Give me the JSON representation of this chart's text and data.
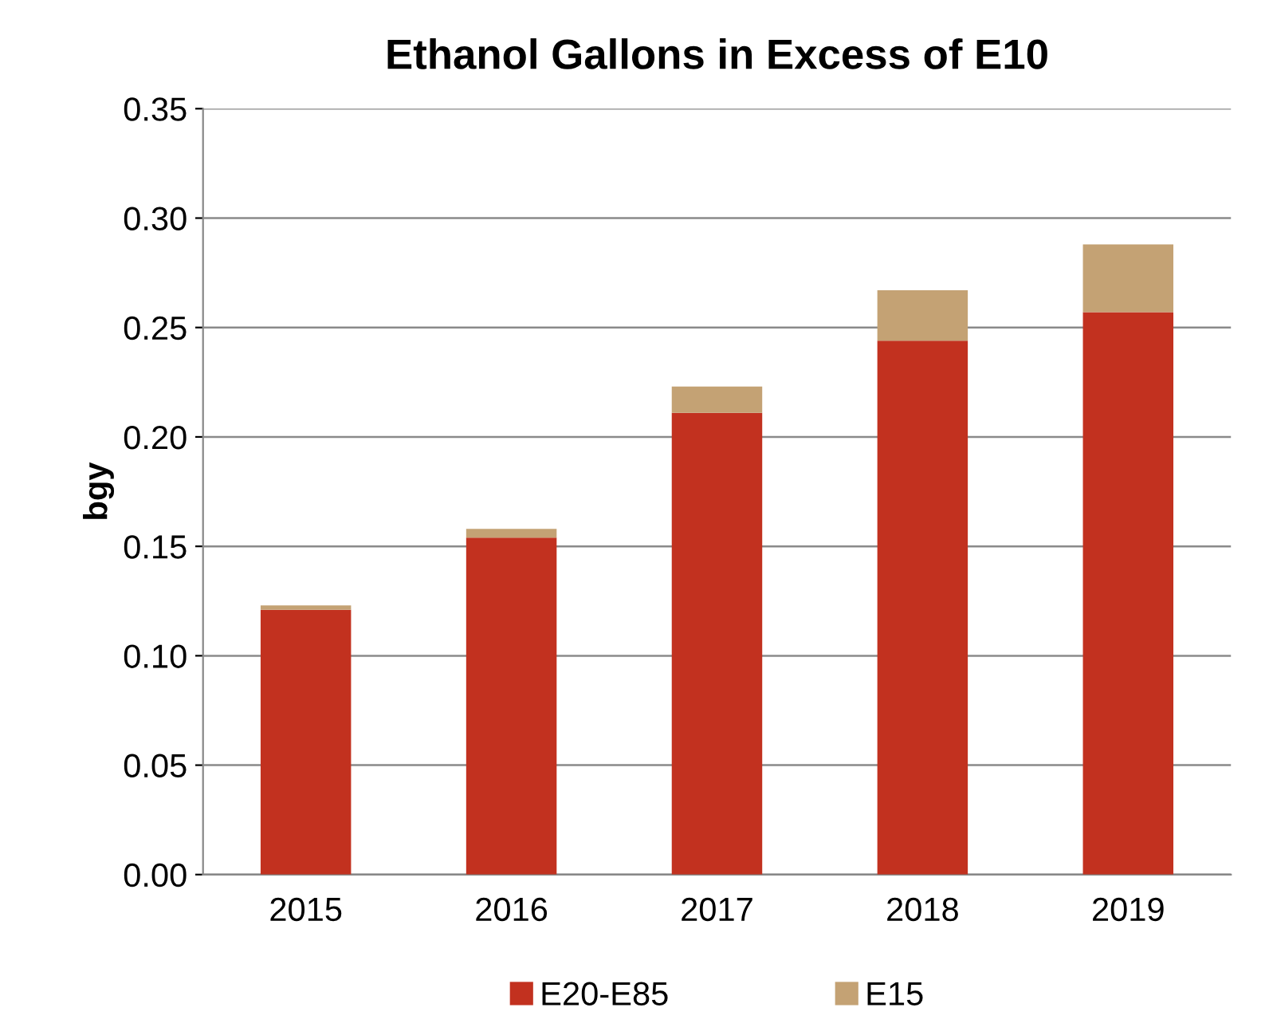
{
  "chart_data": {
    "type": "bar",
    "title": "Ethanol Gallons in Excess of E10",
    "ylabel": "bgy",
    "categories": [
      "2015",
      "2016",
      "2017",
      "2018",
      "2019"
    ],
    "series": [
      {
        "name": "E20-E85",
        "color": "#c2311f",
        "values": [
          0.121,
          0.154,
          0.211,
          0.244,
          0.257
        ]
      },
      {
        "name": "E15",
        "color": "#c4a274",
        "values": [
          0.002,
          0.004,
          0.012,
          0.023,
          0.031
        ]
      }
    ],
    "stacked": true,
    "ylim": [
      0,
      0.35
    ],
    "yticks": [
      {
        "value": 0,
        "label": "0.00"
      },
      {
        "value": 0.05,
        "label": "0.05"
      },
      {
        "value": 0.1,
        "label": "0.10"
      },
      {
        "value": 0.15,
        "label": "0.15"
      },
      {
        "value": 0.2,
        "label": "0.20"
      },
      {
        "value": 0.25,
        "label": "0.25"
      },
      {
        "value": 0.3,
        "label": "0.30"
      },
      {
        "value": 0.35,
        "label": "0.35"
      }
    ],
    "grid": "y",
    "legend": "bottom"
  }
}
